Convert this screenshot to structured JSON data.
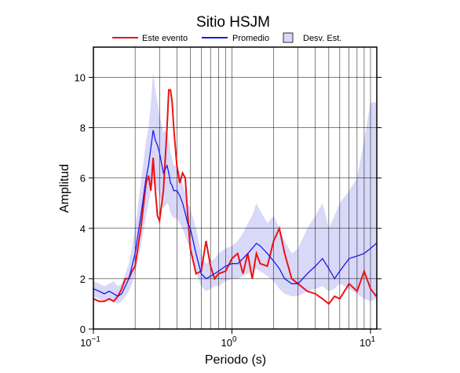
{
  "chart_data": {
    "type": "line",
    "title": "Sitio HSJM",
    "x_label": "Periodo (s)",
    "y_label": "Amplitud",
    "x_scale": "log",
    "grid": true,
    "xlim": [
      0.1,
      11.1
    ],
    "ylim": [
      0,
      11.2
    ],
    "xticks": [
      {
        "value": 0.1,
        "label": "10",
        "exponent": "−1"
      },
      {
        "value": 1,
        "label": "10",
        "exponent": "0"
      },
      {
        "value": 10,
        "label": "10",
        "exponent": "1"
      }
    ],
    "xgrid": [
      0.2,
      0.3,
      0.4,
      0.5,
      0.6,
      0.7,
      0.8,
      0.9,
      2,
      3,
      4,
      5,
      6,
      7,
      8,
      9
    ],
    "yticks": [
      0,
      2,
      4,
      6,
      8,
      10
    ],
    "x": [
      0.1,
      0.11,
      0.12,
      0.13,
      0.14,
      0.15,
      0.16,
      0.17,
      0.18,
      0.19,
      0.2,
      0.22,
      0.24,
      0.25,
      0.26,
      0.27,
      0.28,
      0.29,
      0.3,
      0.32,
      0.34,
      0.35,
      0.36,
      0.37,
      0.38,
      0.4,
      0.42,
      0.44,
      0.46,
      0.48,
      0.5,
      0.55,
      0.6,
      0.65,
      0.7,
      0.75,
      0.8,
      0.9,
      1.0,
      1.1,
      1.2,
      1.3,
      1.4,
      1.5,
      1.6,
      1.8,
      2.0,
      2.2,
      2.4,
      2.7,
      3.0,
      3.5,
      4.0,
      4.5,
      5.0,
      5.5,
      6.0,
      7.0,
      8.0,
      9.0,
      10,
      11
    ],
    "series": [
      {
        "name": "Este evento",
        "color": "#ee1111",
        "values": [
          1.2,
          1.1,
          1.1,
          1.2,
          1.1,
          1.3,
          1.6,
          2.0,
          2.0,
          2.3,
          2.5,
          4.0,
          5.8,
          6.1,
          5.5,
          6.8,
          5.5,
          4.5,
          4.3,
          5.5,
          8.0,
          9.5,
          9.5,
          9.0,
          8.0,
          6.5,
          5.8,
          6.2,
          6.0,
          4.5,
          3.2,
          2.2,
          2.3,
          3.5,
          2.5,
          2.0,
          2.2,
          2.3,
          2.8,
          3.0,
          2.2,
          3.0,
          2.0,
          3.0,
          2.6,
          2.5,
          3.5,
          4.0,
          3.0,
          2.0,
          1.8,
          1.5,
          1.4,
          1.2,
          1.0,
          1.3,
          1.2,
          1.8,
          1.5,
          2.3,
          1.6,
          1.3
        ]
      },
      {
        "name": "Promedio",
        "color": "#1a1aee",
        "values": [
          1.6,
          1.5,
          1.4,
          1.5,
          1.4,
          1.3,
          1.4,
          1.7,
          2.0,
          2.5,
          3.0,
          4.5,
          6.0,
          6.5,
          7.2,
          7.9,
          7.5,
          7.3,
          7.0,
          6.2,
          6.5,
          6.2,
          5.8,
          5.7,
          5.5,
          5.5,
          5.3,
          5.0,
          4.6,
          4.2,
          4.0,
          3.0,
          2.2,
          2.0,
          2.1,
          2.2,
          2.3,
          2.5,
          2.6,
          2.6,
          2.8,
          3.0,
          3.2,
          3.4,
          3.3,
          3.0,
          2.7,
          2.4,
          2.0,
          1.8,
          1.8,
          2.2,
          2.5,
          2.8,
          2.4,
          2.0,
          2.3,
          2.8,
          2.9,
          3.0,
          3.2,
          3.4
        ]
      },
      {
        "name": "Desv. Est.",
        "color": "#d8d8f8",
        "upper": [
          1.9,
          1.8,
          1.7,
          1.8,
          1.9,
          1.7,
          1.8,
          2.2,
          2.6,
          3.2,
          4.0,
          5.8,
          7.5,
          8.0,
          9.0,
          10.2,
          9.5,
          9.0,
          8.5,
          7.8,
          8.0,
          7.5,
          7.0,
          6.8,
          6.5,
          6.5,
          6.2,
          5.8,
          5.4,
          5.0,
          4.8,
          4.0,
          3.0,
          2.6,
          2.7,
          2.8,
          3.0,
          3.2,
          3.3,
          3.5,
          3.8,
          4.2,
          4.5,
          5.0,
          4.7,
          4.2,
          4.5,
          4.0,
          3.5,
          3.0,
          3.2,
          4.0,
          4.5,
          5.0,
          4.0,
          4.5,
          5.0,
          5.5,
          6.0,
          7.5,
          9.0,
          9.0
        ],
        "lower": [
          1.3,
          1.2,
          1.1,
          1.2,
          1.1,
          1.0,
          1.1,
          1.3,
          1.5,
          1.8,
          2.2,
          3.3,
          4.5,
          5.0,
          5.5,
          5.8,
          5.6,
          5.5,
          5.3,
          4.8,
          5.0,
          4.9,
          4.6,
          4.5,
          4.4,
          4.4,
          4.2,
          4.0,
          3.7,
          3.4,
          3.2,
          2.3,
          1.7,
          1.5,
          1.6,
          1.7,
          1.7,
          1.9,
          2.0,
          2.0,
          2.1,
          2.2,
          2.3,
          2.4,
          2.3,
          2.1,
          1.9,
          1.6,
          1.4,
          1.3,
          1.3,
          1.5,
          1.6,
          1.7,
          1.5,
          1.6,
          1.8,
          1.6,
          1.4,
          1.2,
          1.1,
          1.2
        ]
      }
    ]
  }
}
